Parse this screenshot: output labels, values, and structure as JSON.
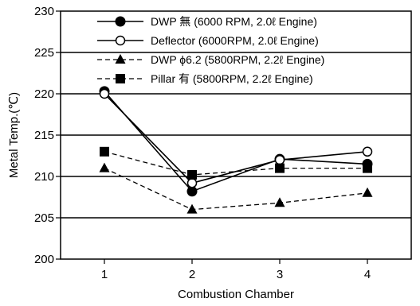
{
  "chart_data": {
    "type": "line",
    "title": "",
    "xlabel": "Combustion Chamber",
    "ylabel": "Metal Temp.(℃)",
    "categories": [
      "1",
      "2",
      "3",
      "4"
    ],
    "ylim": [
      200,
      230
    ],
    "yticks": [
      200,
      205,
      210,
      215,
      220,
      225,
      230
    ],
    "grid": "horizontal",
    "legend_position": "top",
    "series": [
      {
        "name": "DWP 無 (6000 RPM, 2.0ℓ Engine)",
        "values": [
          220.3,
          208.2,
          212.1,
          211.5
        ],
        "marker": "filled-circle",
        "line": "solid"
      },
      {
        "name": "Deflector (6000RPM, 2.0ℓ Engine)",
        "values": [
          220.0,
          209.2,
          212.0,
          213.0
        ],
        "marker": "open-circle",
        "line": "solid"
      },
      {
        "name": "DWP ϕ6.2 (5800RPM, 2.2ℓ Engine)",
        "values": [
          211.0,
          206.0,
          206.8,
          208.0
        ],
        "marker": "filled-triangle",
        "line": "dashed"
      },
      {
        "name": "Pillar 有 (5800RPM, 2.2ℓ Engine)",
        "values": [
          213.0,
          210.2,
          211.0,
          211.0
        ],
        "marker": "filled-square",
        "line": "dashed"
      }
    ]
  }
}
